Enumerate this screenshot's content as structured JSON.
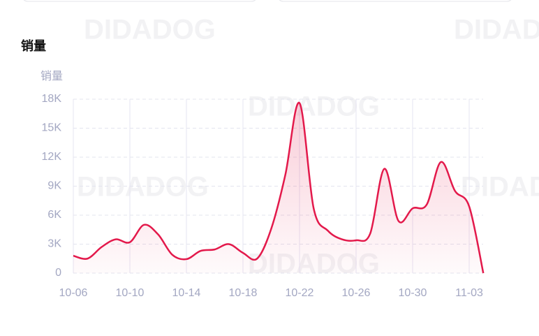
{
  "chart_data": {
    "type": "line",
    "title": "销量",
    "y_label": "销量",
    "watermark": "DIDADOG",
    "categories": [
      "10-06",
      null,
      null,
      null,
      "10-10",
      null,
      null,
      null,
      "10-14",
      null,
      null,
      null,
      "10-18",
      null,
      null,
      null,
      "10-22",
      null,
      null,
      null,
      "10-26",
      null,
      null,
      null,
      "10-30",
      null,
      null,
      null,
      "11-03",
      null
    ],
    "values": [
      1800,
      1500,
      2700,
      3500,
      3200,
      5000,
      4000,
      1900,
      1450,
      2300,
      2450,
      3000,
      2100,
      1500,
      4600,
      10200,
      17600,
      6700,
      4400,
      3500,
      3400,
      4100,
      10800,
      5400,
      6700,
      7100,
      11500,
      8500,
      6900,
      0
    ],
    "color": "#e3194b",
    "ylim": [
      0,
      18000
    ],
    "yticks": [
      0,
      {
        "value": 3000,
        "label": "3K"
      },
      {
        "value": 6000,
        "label": "6K"
      },
      {
        "value": 9000,
        "label": "9K"
      },
      {
        "value": 12000,
        "label": "12K"
      },
      {
        "value": 15000,
        "label": "15K"
      },
      {
        "value": 18000,
        "label": "18K"
      }
    ],
    "grid": true
  }
}
